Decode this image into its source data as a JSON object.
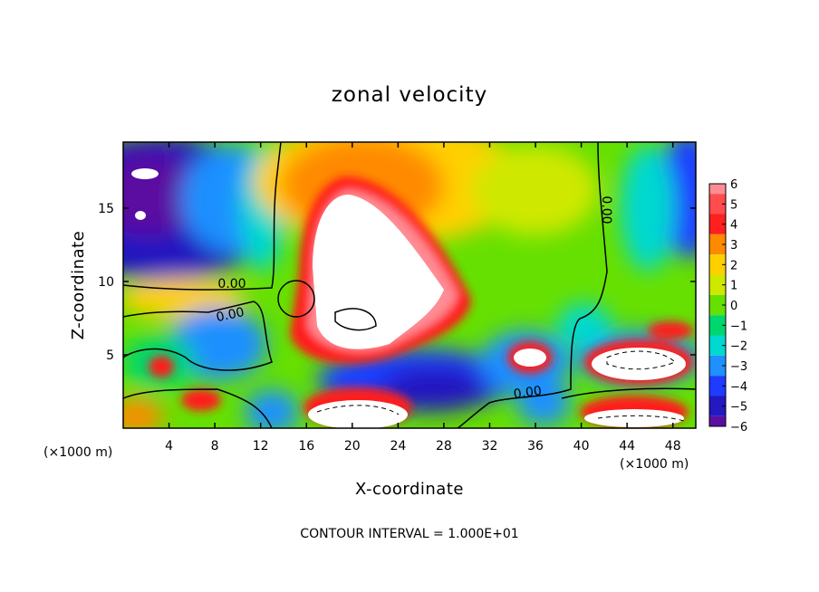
{
  "chart_data": {
    "type": "heatmap",
    "title": "zonal velocity",
    "xlabel": "X-coordinate",
    "ylabel": "Z-coordinate",
    "x_unit": "(×1000 m)",
    "y_unit": "(×1000 m)",
    "xlim": [
      0,
      50
    ],
    "ylim": [
      0,
      19.5
    ],
    "x_ticks": [
      4,
      8,
      12,
      16,
      20,
      24,
      28,
      32,
      36,
      40,
      44,
      48
    ],
    "y_ticks": [
      5,
      10,
      15
    ],
    "colorbar": {
      "levels": [
        6,
        5,
        4,
        3,
        2,
        1,
        0,
        -1,
        -2,
        -3,
        -4,
        -5,
        -6
      ],
      "colors": [
        "#ff8c94",
        "#ff4d4d",
        "#ff1f1f",
        "#ff8a00",
        "#ffd000",
        "#cfe800",
        "#66e000",
        "#00d66e",
        "#00d8d0",
        "#1e90ff",
        "#1e3cff",
        "#2418c0",
        "#5a0fa0"
      ]
    },
    "contour_labels": [
      "0.00",
      "0.00",
      "0.00",
      "0.00"
    ],
    "footer": "CONTOUR INTERVAL = 1.000E+01"
  }
}
